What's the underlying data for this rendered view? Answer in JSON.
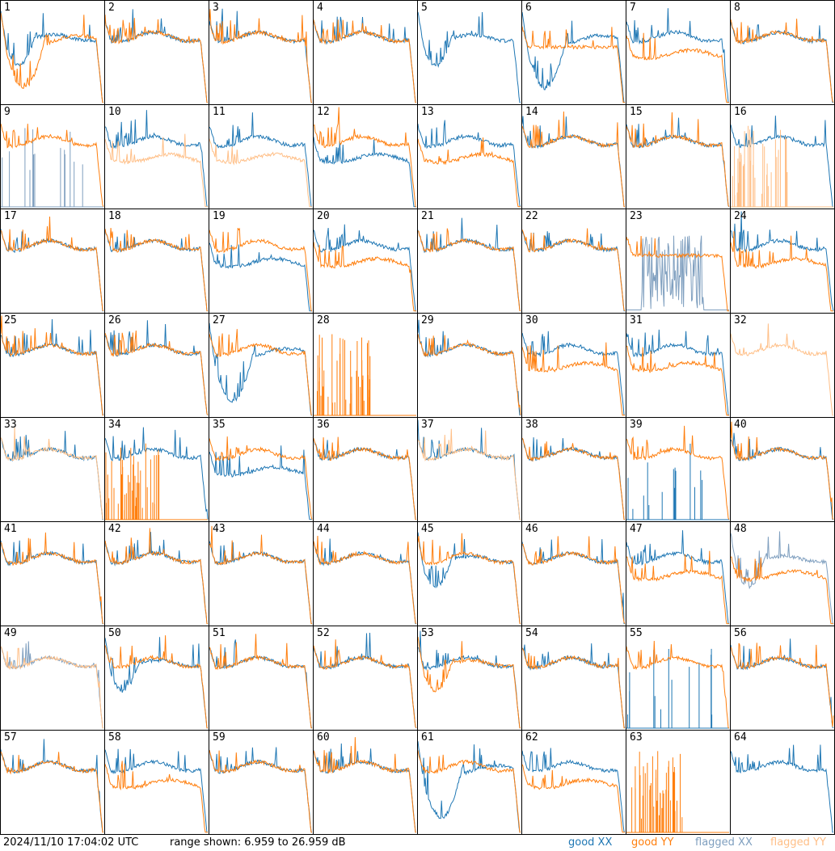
{
  "footer": {
    "timestamp": "2024/11/10 17:04:02 UTC",
    "range_text": "range shown: 6.959 to 26.959 dB"
  },
  "colors": {
    "good_xx": "#1f77b4",
    "good_yy": "#ff7f0e",
    "flagged_xx": "#7f9fbf",
    "flagged_yy": "#ffbf87",
    "border": "#000000"
  },
  "chart_data": {
    "type": "line",
    "title": "",
    "ylim": [
      6.959,
      26.959
    ],
    "yunit": "dB",
    "grid": false,
    "legend": [
      {
        "label": "good XX",
        "color_key": "good_xx"
      },
      {
        "label": "good YY",
        "color_key": "good_yy"
      },
      {
        "label": "flagged XX",
        "color_key": "flagged_xx"
      },
      {
        "label": "flagged YY",
        "color_key": "flagged_yy"
      }
    ],
    "panels": [
      {
        "id": "1",
        "xx": "good",
        "yy": "good",
        "xs": "drop",
        "ys": "dropdeep"
      },
      {
        "id": "2",
        "xx": "good",
        "yy": "good",
        "xs": "normal",
        "ys": "normal"
      },
      {
        "id": "3",
        "xx": "good",
        "yy": "good",
        "xs": "normal",
        "ys": "normal"
      },
      {
        "id": "4",
        "xx": "good",
        "yy": "good",
        "xs": "normal",
        "ys": "normal"
      },
      {
        "id": "5",
        "xx": "good",
        "yy": "none",
        "xs": "drop",
        "ys": "none"
      },
      {
        "id": "6",
        "xx": "good",
        "yy": "good",
        "xs": "dropdeep",
        "ys": "flat"
      },
      {
        "id": "7",
        "xx": "good",
        "yy": "good",
        "xs": "normal",
        "ys": "low"
      },
      {
        "id": "8",
        "xx": "good",
        "yy": "good",
        "xs": "normal",
        "ys": "normal"
      },
      {
        "id": "9",
        "xx": "flagged",
        "yy": "good",
        "xs": "spikes",
        "ys": "normal"
      },
      {
        "id": "10",
        "xx": "good",
        "yy": "flagged",
        "xs": "normal",
        "ys": "low"
      },
      {
        "id": "11",
        "xx": "good",
        "yy": "flagged",
        "xs": "normal",
        "ys": "low"
      },
      {
        "id": "12",
        "xx": "good",
        "yy": "good",
        "xs": "low",
        "ys": "normal"
      },
      {
        "id": "13",
        "xx": "good",
        "yy": "good",
        "xs": "normal",
        "ys": "low"
      },
      {
        "id": "14",
        "xx": "good",
        "yy": "good",
        "xs": "normal",
        "ys": "normal"
      },
      {
        "id": "15",
        "xx": "good",
        "yy": "good",
        "xs": "normal",
        "ys": "normal"
      },
      {
        "id": "16",
        "xx": "good",
        "yy": "flagged",
        "xs": "normal",
        "ys": "spikes"
      },
      {
        "id": "17",
        "xx": "good",
        "yy": "good",
        "xs": "normal",
        "ys": "normal"
      },
      {
        "id": "18",
        "xx": "good",
        "yy": "good",
        "xs": "normal",
        "ys": "normal"
      },
      {
        "id": "19",
        "xx": "good",
        "yy": "good",
        "xs": "low",
        "ys": "normal"
      },
      {
        "id": "20",
        "xx": "good",
        "yy": "good",
        "xs": "normal",
        "ys": "low"
      },
      {
        "id": "21",
        "xx": "good",
        "yy": "good",
        "xs": "normal",
        "ys": "normal"
      },
      {
        "id": "22",
        "xx": "good",
        "yy": "good",
        "xs": "normal",
        "ys": "normal"
      },
      {
        "id": "23",
        "xx": "flagged",
        "yy": "good",
        "xs": "noisy",
        "ys": "flat"
      },
      {
        "id": "24",
        "xx": "good",
        "yy": "good",
        "xs": "normal",
        "ys": "low"
      },
      {
        "id": "25",
        "xx": "good",
        "yy": "good",
        "xs": "normal",
        "ys": "normal"
      },
      {
        "id": "26",
        "xx": "good",
        "yy": "good",
        "xs": "normal",
        "ys": "normal"
      },
      {
        "id": "27",
        "xx": "good",
        "yy": "good",
        "xs": "dropdeep",
        "ys": "normal"
      },
      {
        "id": "28",
        "xx": "none",
        "yy": "good",
        "xs": "none",
        "ys": "spikes"
      },
      {
        "id": "29",
        "xx": "good",
        "yy": "good",
        "xs": "normal",
        "ys": "normal"
      },
      {
        "id": "30",
        "xx": "good",
        "yy": "good",
        "xs": "normal",
        "ys": "low"
      },
      {
        "id": "31",
        "xx": "good",
        "yy": "good",
        "xs": "normal",
        "ys": "low"
      },
      {
        "id": "32",
        "xx": "none",
        "yy": "flagged",
        "xs": "none",
        "ys": "normal"
      },
      {
        "id": "33",
        "xx": "good",
        "yy": "flagged",
        "xs": "normal",
        "ys": "normal"
      },
      {
        "id": "34",
        "xx": "good",
        "yy": "good",
        "xs": "normal",
        "ys": "spikes"
      },
      {
        "id": "35",
        "xx": "good",
        "yy": "good",
        "xs": "low",
        "ys": "normal"
      },
      {
        "id": "36",
        "xx": "good",
        "yy": "good",
        "xs": "normal",
        "ys": "normal"
      },
      {
        "id": "37",
        "xx": "good",
        "yy": "flagged",
        "xs": "normal",
        "ys": "normal"
      },
      {
        "id": "38",
        "xx": "good",
        "yy": "good",
        "xs": "normal",
        "ys": "normal"
      },
      {
        "id": "39",
        "xx": "good",
        "yy": "good",
        "xs": "spikes",
        "ys": "normal"
      },
      {
        "id": "40",
        "xx": "good",
        "yy": "good",
        "xs": "normal",
        "ys": "normal"
      },
      {
        "id": "41",
        "xx": "good",
        "yy": "good",
        "xs": "normal",
        "ys": "normal"
      },
      {
        "id": "42",
        "xx": "good",
        "yy": "good",
        "xs": "normal",
        "ys": "normal"
      },
      {
        "id": "43",
        "xx": "good",
        "yy": "good",
        "xs": "normal",
        "ys": "normal"
      },
      {
        "id": "44",
        "xx": "good",
        "yy": "good",
        "xs": "normal",
        "ys": "normal"
      },
      {
        "id": "45",
        "xx": "good",
        "yy": "good",
        "xs": "drop",
        "ys": "normal"
      },
      {
        "id": "46",
        "xx": "good",
        "yy": "good",
        "xs": "normal",
        "ys": "normal"
      },
      {
        "id": "47",
        "xx": "good",
        "yy": "good",
        "xs": "normal",
        "ys": "low"
      },
      {
        "id": "48",
        "xx": "flagged",
        "yy": "good",
        "xs": "drop",
        "ys": "low"
      },
      {
        "id": "49",
        "xx": "flagged",
        "yy": "flagged",
        "xs": "normal",
        "ys": "normal"
      },
      {
        "id": "50",
        "xx": "good",
        "yy": "good",
        "xs": "drop",
        "ys": "normal"
      },
      {
        "id": "51",
        "xx": "good",
        "yy": "good",
        "xs": "normal",
        "ys": "normal"
      },
      {
        "id": "52",
        "xx": "good",
        "yy": "good",
        "xs": "normal",
        "ys": "normal"
      },
      {
        "id": "53",
        "xx": "good",
        "yy": "good",
        "xs": "normal",
        "ys": "drop"
      },
      {
        "id": "54",
        "xx": "good",
        "yy": "good",
        "xs": "normal",
        "ys": "normal"
      },
      {
        "id": "55",
        "xx": "good",
        "yy": "good",
        "xs": "spikes",
        "ys": "normal"
      },
      {
        "id": "56",
        "xx": "good",
        "yy": "good",
        "xs": "normal",
        "ys": "normal"
      },
      {
        "id": "57",
        "xx": "good",
        "yy": "good",
        "xs": "normal",
        "ys": "normal"
      },
      {
        "id": "58",
        "xx": "good",
        "yy": "good",
        "xs": "normal",
        "ys": "low"
      },
      {
        "id": "59",
        "xx": "good",
        "yy": "good",
        "xs": "normal",
        "ys": "normal"
      },
      {
        "id": "60",
        "xx": "good",
        "yy": "good",
        "xs": "normal",
        "ys": "normal"
      },
      {
        "id": "61",
        "xx": "good",
        "yy": "good",
        "xs": "dropdeep",
        "ys": "normal"
      },
      {
        "id": "62",
        "xx": "good",
        "yy": "good",
        "xs": "normal",
        "ys": "low"
      },
      {
        "id": "63",
        "xx": "none",
        "yy": "good",
        "xs": "none",
        "ys": "spikes"
      },
      {
        "id": "64",
        "xx": "good",
        "yy": "none",
        "xs": "normal",
        "ys": "none"
      }
    ]
  }
}
